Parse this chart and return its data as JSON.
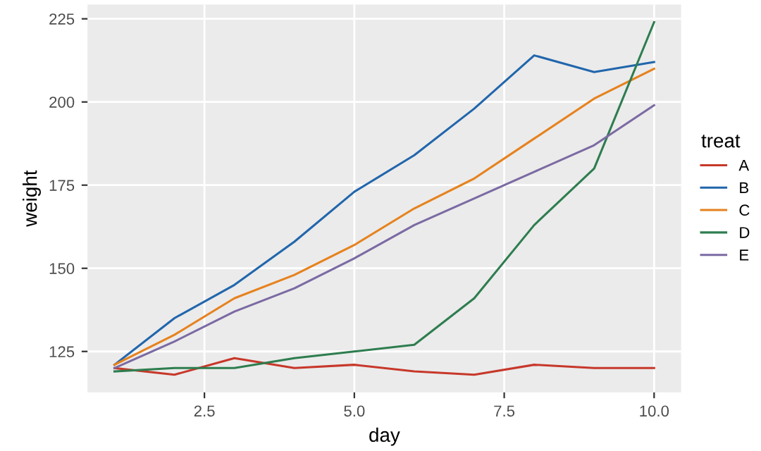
{
  "chart_data": {
    "type": "line",
    "xlabel": "day",
    "ylabel": "weight",
    "legend_title": "treat",
    "legend": "right",
    "grid": true,
    "marker": "none",
    "line_style": "solid",
    "x": [
      1,
      2,
      3,
      4,
      5,
      6,
      7,
      8,
      9,
      10
    ],
    "xlim": [
      0.55,
      10.45
    ],
    "xticks": [
      {
        "value": 2.5,
        "label": "2.5"
      },
      {
        "value": 5,
        "label": "5.0"
      },
      {
        "value": 7.5,
        "label": "7.5"
      },
      {
        "value": 10,
        "label": "10.0"
      }
    ],
    "ylim": [
      112.7,
      229.3
    ],
    "yticks": [
      125,
      150,
      175,
      200,
      225
    ],
    "series": [
      {
        "name": "A",
        "color": "#c7382a",
        "values": [
          120,
          118,
          123,
          120,
          121,
          119,
          118,
          121,
          120,
          120
        ]
      },
      {
        "name": "B",
        "color": "#2166ac",
        "values": [
          121,
          135,
          145,
          158,
          173,
          184,
          198,
          214,
          209,
          212
        ]
      },
      {
        "name": "C",
        "color": "#e6821e",
        "values": [
          121,
          130,
          141,
          148,
          157,
          168,
          177,
          189,
          201,
          210
        ]
      },
      {
        "name": "D",
        "color": "#2e7d4f",
        "values": [
          119,
          120,
          120,
          123,
          125,
          127,
          141,
          163,
          180,
          224
        ]
      },
      {
        "name": "E",
        "color": "#7b6aa3",
        "values": [
          120,
          128,
          137,
          144,
          153,
          163,
          171,
          179,
          187,
          199
        ]
      }
    ]
  }
}
